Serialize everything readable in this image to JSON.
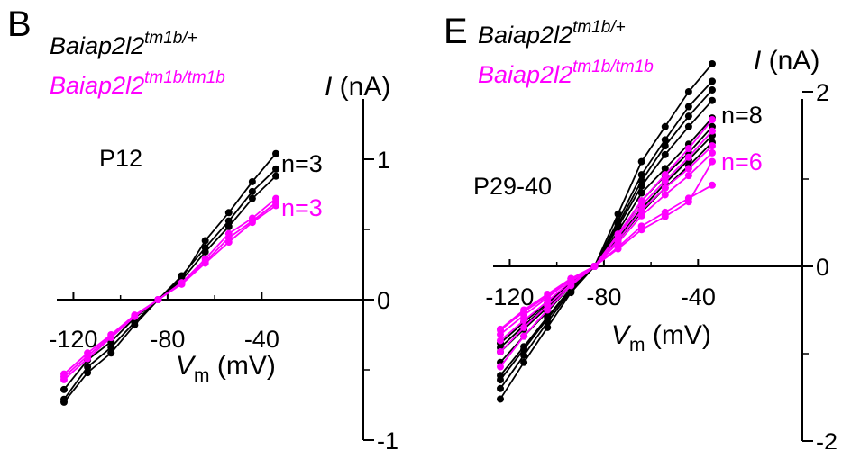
{
  "colors": {
    "wt": "#000000",
    "mut": "#ff00ff"
  },
  "chart_data": [
    {
      "type": "line",
      "panel_label": "B",
      "legend": [
        {
          "base": "Baiap2l2",
          "sup": "tm1b/+",
          "color": "#000000"
        },
        {
          "base": "Baiap2l2",
          "sup": "tm1b/tm1b",
          "color": "#ff00ff"
        }
      ],
      "age_label": "P12",
      "n_labels": [
        {
          "text": "n=3",
          "color": "#000000"
        },
        {
          "text": "n=3",
          "color": "#ff00ff"
        }
      ],
      "xlabel": {
        "var": "V",
        "sub": "m",
        "unit": " (mV)"
      },
      "ylabel": {
        "var": "I",
        "unit": " (nA)"
      },
      "xlim": [
        -125,
        -32
      ],
      "ylim": [
        -1,
        1.3
      ],
      "xticks": [
        -120,
        -80,
        -40
      ],
      "xtick_labels": [
        "-120",
        "-80",
        "-40"
      ],
      "yticks": [
        -1,
        0,
        1
      ],
      "ytick_labels": [
        "-1",
        "0",
        "1"
      ],
      "x": [
        -124,
        -114,
        -104,
        -94,
        -84,
        -74,
        -64,
        -54,
        -44,
        -34
      ],
      "series": [
        {
          "group": "wt",
          "values": [
            -0.73,
            -0.52,
            -0.38,
            -0.18,
            0.0,
            0.17,
            0.37,
            0.56,
            0.77,
            0.93
          ]
        },
        {
          "group": "wt",
          "values": [
            -0.71,
            -0.48,
            -0.34,
            -0.16,
            0.0,
            0.15,
            0.42,
            0.62,
            0.84,
            1.04
          ]
        },
        {
          "group": "wt",
          "values": [
            -0.64,
            -0.43,
            -0.3,
            -0.13,
            0.0,
            0.14,
            0.34,
            0.52,
            0.72,
            0.88
          ]
        },
        {
          "group": "mut",
          "values": [
            -0.57,
            -0.42,
            -0.27,
            -0.12,
            0.0,
            0.12,
            0.29,
            0.47,
            0.58,
            0.72
          ]
        },
        {
          "group": "mut",
          "values": [
            -0.53,
            -0.38,
            -0.25,
            -0.11,
            0.0,
            0.11,
            0.26,
            0.41,
            0.55,
            0.67
          ]
        },
        {
          "group": "mut",
          "values": [
            -0.55,
            -0.4,
            -0.26,
            -0.12,
            0.0,
            0.12,
            0.27,
            0.44,
            0.56,
            0.69
          ]
        }
      ]
    },
    {
      "type": "line",
      "panel_label": "E",
      "legend": [
        {
          "base": "Baiap2l2",
          "sup": "tm1b/+",
          "color": "#000000"
        },
        {
          "base": "Baiap2l2",
          "sup": "tm1b/tm1b",
          "color": "#ff00ff"
        }
      ],
      "age_label": "P29-40",
      "n_labels": [
        {
          "text": "n=8",
          "color": "#000000"
        },
        {
          "text": "n=6",
          "color": "#ff00ff"
        }
      ],
      "xlabel": {
        "var": "V",
        "sub": "m",
        "unit": " (mV)"
      },
      "ylabel": {
        "var": "I",
        "unit": " (nA)"
      },
      "xlim": [
        -125,
        -32
      ],
      "ylim": [
        -2,
        2.3
      ],
      "xticks": [
        -120,
        -80,
        -40
      ],
      "xtick_labels": [
        "-120",
        "-80",
        "-40"
      ],
      "yticks": [
        -2,
        0,
        2
      ],
      "ytick_labels": [
        "-2",
        "0",
        "2"
      ],
      "x": [
        -124,
        -114,
        -104,
        -94,
        -84,
        -74,
        -64,
        -54,
        -44,
        -34
      ],
      "series": [
        {
          "group": "wt",
          "values": [
            -1.52,
            -1.1,
            -0.7,
            -0.3,
            0.0,
            0.6,
            1.2,
            1.6,
            2.0,
            2.32
          ]
        },
        {
          "group": "wt",
          "values": [
            -1.4,
            -1.02,
            -0.64,
            -0.28,
            0.0,
            0.52,
            1.05,
            1.45,
            1.83,
            2.12
          ]
        },
        {
          "group": "wt",
          "values": [
            -1.3,
            -0.95,
            -0.6,
            -0.26,
            0.0,
            0.48,
            0.98,
            1.38,
            1.72,
            2.02
          ]
        },
        {
          "group": "wt",
          "values": [
            -1.1,
            -0.8,
            -0.52,
            -0.22,
            0.0,
            0.4,
            0.84,
            1.12,
            1.4,
            1.7
          ]
        },
        {
          "group": "wt",
          "values": [
            -0.98,
            -0.72,
            -0.47,
            -0.2,
            0.0,
            0.36,
            0.75,
            1.04,
            1.3,
            1.6
          ]
        },
        {
          "group": "wt",
          "values": [
            -0.93,
            -0.68,
            -0.44,
            -0.19,
            0.0,
            0.32,
            0.66,
            0.95,
            1.22,
            1.5
          ]
        },
        {
          "group": "wt",
          "values": [
            -0.88,
            -0.64,
            -0.42,
            -0.18,
            0.0,
            0.3,
            0.62,
            0.9,
            1.15,
            1.42
          ]
        },
        {
          "group": "wt",
          "values": [
            -1.25,
            -0.92,
            -0.58,
            -0.25,
            0.0,
            0.45,
            0.92,
            1.28,
            1.6,
            1.9
          ]
        },
        {
          "group": "mut",
          "values": [
            -1.15,
            -0.8,
            -0.5,
            -0.22,
            0.0,
            0.37,
            0.75,
            1.05,
            1.35,
            1.68
          ]
        },
        {
          "group": "mut",
          "values": [
            -0.98,
            -0.7,
            -0.45,
            -0.2,
            0.0,
            0.35,
            0.7,
            0.98,
            1.25,
            1.55
          ]
        },
        {
          "group": "mut",
          "values": [
            -0.85,
            -0.62,
            -0.4,
            -0.17,
            0.0,
            0.3,
            0.64,
            0.9,
            1.12,
            1.38
          ]
        },
        {
          "group": "mut",
          "values": [
            -0.78,
            -0.56,
            -0.36,
            -0.15,
            0.0,
            0.27,
            0.58,
            0.82,
            1.04,
            1.3
          ]
        },
        {
          "group": "mut",
          "values": [
            -0.73,
            -0.52,
            -0.34,
            -0.14,
            0.0,
            0.22,
            0.46,
            0.62,
            0.78,
            0.93
          ]
        },
        {
          "group": "mut",
          "values": [
            -0.72,
            -0.5,
            -0.32,
            -0.14,
            0.0,
            0.2,
            0.42,
            0.57,
            0.74,
            1.2
          ]
        }
      ]
    }
  ]
}
